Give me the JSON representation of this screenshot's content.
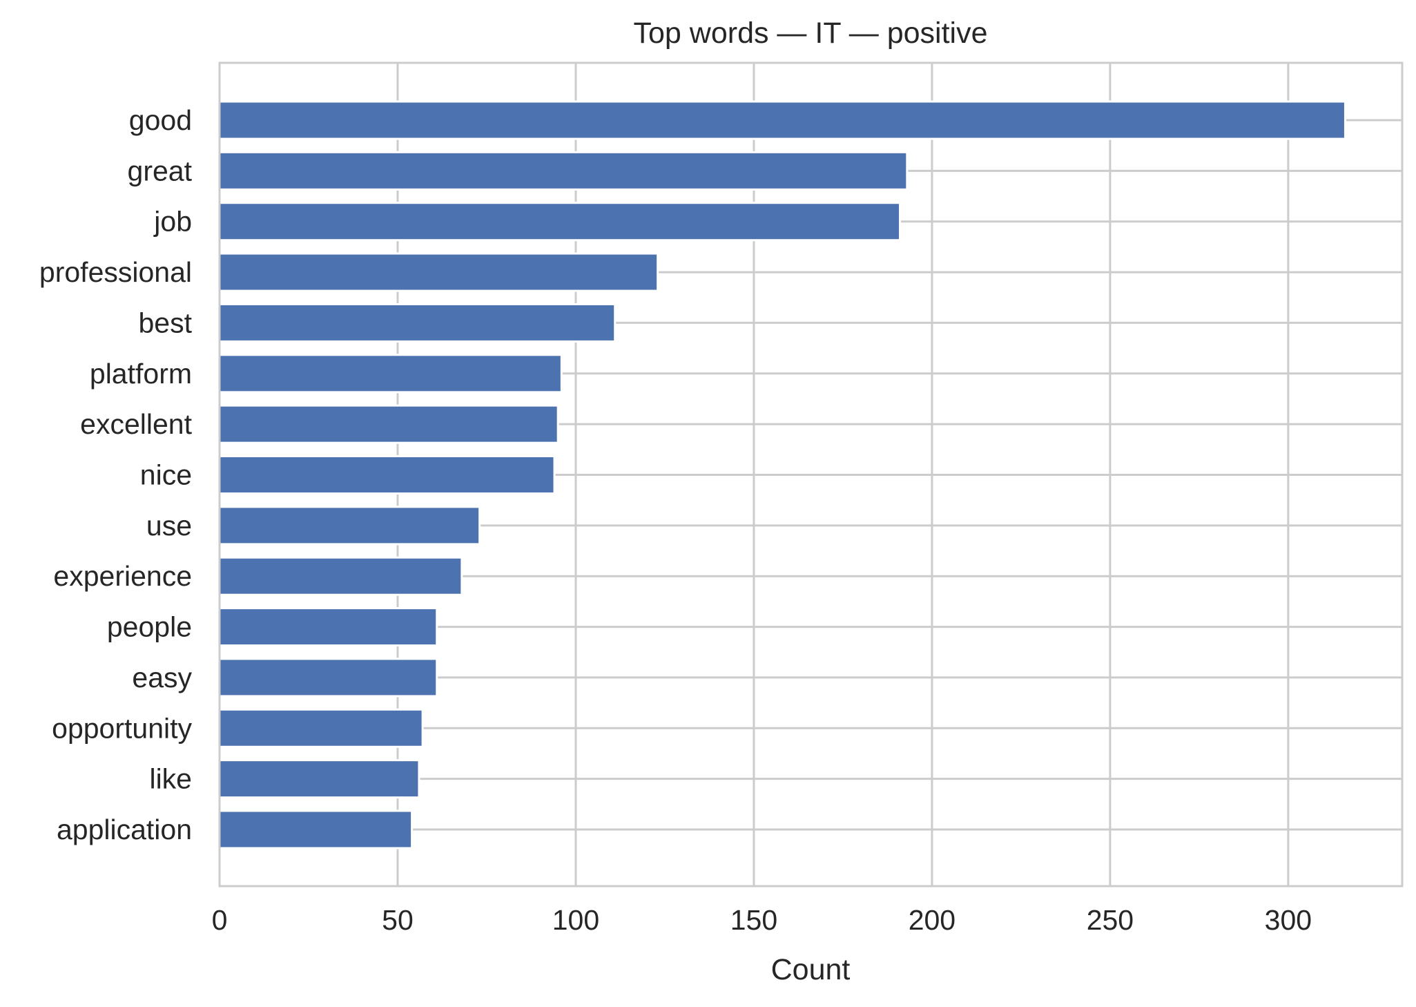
{
  "chart_data": {
    "type": "bar",
    "orientation": "horizontal",
    "title": "Top words — IT — positive",
    "xlabel": "Count",
    "ylabel": "",
    "xlim": [
      0,
      332
    ],
    "xticks": [
      0,
      50,
      100,
      150,
      200,
      250,
      300
    ],
    "grid": true,
    "bar_color": "#4c72b0",
    "categories": [
      "good",
      "great",
      "job",
      "professional",
      "best",
      "platform",
      "excellent",
      "nice",
      "use",
      "experience",
      "people",
      "easy",
      "opportunity",
      "like",
      "application"
    ],
    "values": [
      316,
      193,
      191,
      123,
      111,
      96,
      95,
      94,
      73,
      68,
      61,
      61,
      57,
      56,
      54
    ]
  }
}
